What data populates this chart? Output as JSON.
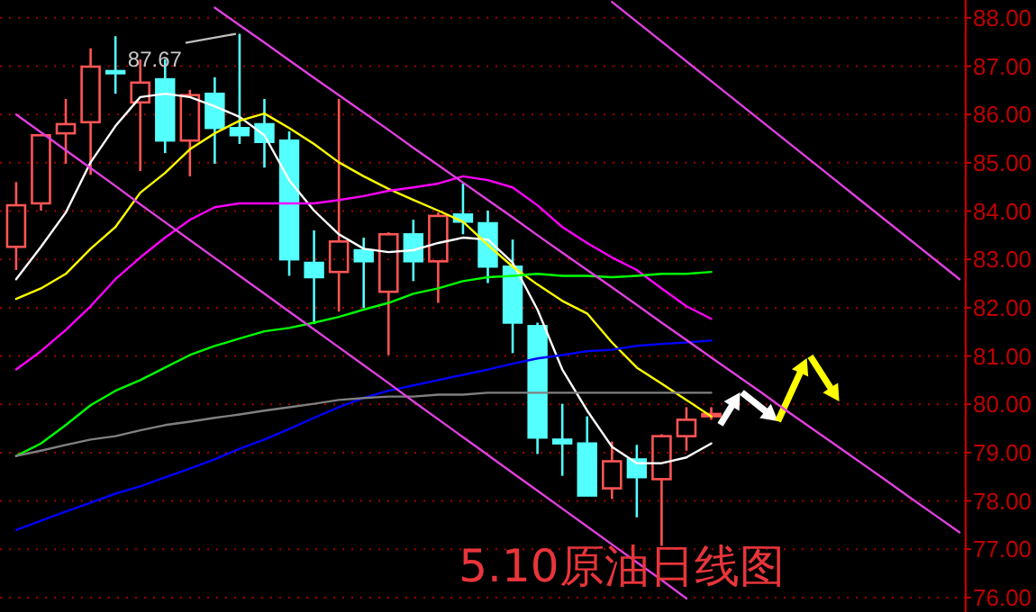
{
  "chart_data": {
    "type": "candlestick",
    "title": "5.10原油日线图",
    "categories": [
      null,
      null,
      null,
      null,
      null,
      null,
      null,
      null,
      null,
      null,
      null,
      null,
      null,
      null,
      null,
      null,
      null,
      null,
      null,
      null,
      null,
      null,
      null,
      null,
      null,
      null,
      null,
      null,
      null,
      null,
      null,
      null,
      null,
      null,
      null,
      null,
      null,
      null,
      null
    ],
    "ohlc": [
      [
        83.26,
        84.6,
        82.78,
        84.12
      ],
      [
        84.16,
        85.57,
        84.01,
        85.57
      ],
      [
        85.61,
        86.32,
        84.98,
        85.8
      ],
      [
        85.84,
        87.37,
        84.75,
        86.99
      ],
      [
        86.9,
        87.62,
        86.43,
        86.86
      ],
      [
        86.25,
        87.14,
        84.83,
        86.66
      ],
      [
        86.73,
        87.14,
        85.2,
        85.46
      ],
      [
        85.46,
        86.51,
        84.72,
        86.4
      ],
      [
        86.43,
        86.77,
        84.98,
        85.72
      ],
      [
        85.72,
        87.67,
        85.39,
        85.57
      ],
      [
        85.8,
        86.32,
        84.9,
        85.43
      ],
      [
        85.46,
        85.65,
        82.66,
        83.0
      ],
      [
        82.93,
        83.6,
        81.66,
        82.63
      ],
      [
        82.74,
        86.32,
        81.92,
        83.37
      ],
      [
        83.19,
        83.45,
        81.99,
        82.96
      ],
      [
        82.33,
        83.56,
        81.02,
        83.52
      ],
      [
        83.52,
        83.82,
        82.55,
        82.96
      ],
      [
        82.96,
        83.97,
        82.1,
        83.9
      ],
      [
        83.93,
        84.57,
        83.52,
        83.78
      ],
      [
        83.75,
        84.01,
        82.51,
        82.85
      ],
      [
        82.85,
        83.41,
        81.06,
        81.69
      ],
      [
        81.62,
        81.69,
        78.97,
        79.31
      ],
      [
        79.27,
        80.01,
        78.52,
        79.19
      ],
      [
        79.19,
        79.75,
        78.11,
        78.11
      ],
      [
        78.26,
        79.23,
        78.04,
        78.82
      ],
      [
        78.86,
        79.16,
        77.66,
        78.49
      ],
      [
        78.45,
        79.38,
        77.07,
        79.34
      ],
      [
        79.34,
        79.94,
        79.04,
        79.68
      ],
      [
        79.78,
        79.94,
        79.68,
        79.8
      ],
      null,
      null,
      null,
      null,
      null,
      null,
      null,
      null,
      null,
      null
    ],
    "colors": [
      "#ff5555",
      "#ff5555",
      "#ff5555",
      "#ff5555",
      "#54ffff",
      "#ff5555",
      "#54ffff",
      "#ff5555",
      "#54ffff",
      "#54ffff",
      "#54ffff",
      "#54ffff",
      "#54ffff",
      "#ff5555",
      "#54ffff",
      "#ff5555",
      "#54ffff",
      "#ff5555",
      "#54ffff",
      "#54ffff",
      "#54ffff",
      "#54ffff",
      "#54ffff",
      "#54ffff",
      "#ff5555",
      "#54ffff",
      "#ff5555",
      "#ff5555",
      "#ff5555",
      null,
      null,
      null,
      null,
      null,
      null,
      null,
      null,
      null,
      null
    ],
    "series": [
      {
        "type": "line",
        "color": "#ffffff",
        "values": [
          82.59,
          83.26,
          83.97,
          85.01,
          85.76,
          86.36,
          86.43,
          86.36,
          86.17,
          85.95,
          85.57,
          84.64,
          84.01,
          83.52,
          83.22,
          83.15,
          83.19,
          83.34,
          83.45,
          83.41,
          82.93,
          81.96,
          80.72,
          79.87,
          79.12,
          78.78,
          78.78,
          78.9,
          79.19,
          null,
          null,
          null,
          null,
          null,
          null,
          null,
          null,
          null,
          null
        ]
      },
      {
        "type": "line",
        "color": "#ffff00",
        "values": [
          82.18,
          82.4,
          82.7,
          83.22,
          83.67,
          84.38,
          84.79,
          85.28,
          85.61,
          85.87,
          86.02,
          85.72,
          85.39,
          85.01,
          84.72,
          84.46,
          84.23,
          84.01,
          83.78,
          83.3,
          82.85,
          82.48,
          82.14,
          81.88,
          81.28,
          80.76,
          80.43,
          80.09,
          79.75,
          null,
          null,
          null,
          null,
          null,
          null,
          null,
          null,
          null,
          null
        ]
      },
      {
        "type": "line",
        "color": "#ff00ff",
        "values": [
          80.72,
          81.1,
          81.54,
          82.03,
          82.59,
          83.04,
          83.45,
          83.82,
          84.08,
          84.16,
          84.16,
          84.16,
          84.16,
          84.23,
          84.31,
          84.42,
          84.49,
          84.57,
          84.72,
          84.64,
          84.49,
          84.12,
          83.67,
          83.34,
          83.04,
          82.78,
          82.4,
          82.03,
          81.77,
          null,
          null,
          null,
          null,
          null,
          null,
          null,
          null,
          null,
          null
        ]
      },
      {
        "type": "line",
        "color": "#00ff00",
        "values": [
          78.93,
          79.19,
          79.57,
          79.98,
          80.28,
          80.5,
          80.76,
          81.02,
          81.21,
          81.36,
          81.51,
          81.58,
          81.69,
          81.81,
          81.96,
          82.1,
          82.29,
          82.4,
          82.55,
          82.63,
          82.66,
          82.7,
          82.66,
          82.66,
          82.63,
          82.66,
          82.7,
          82.7,
          82.74,
          null,
          null,
          null,
          null,
          null,
          null,
          null,
          null,
          null,
          null
        ]
      },
      {
        "type": "line",
        "color": "#0000ff",
        "values": [
          77.4,
          77.59,
          77.78,
          77.96,
          78.15,
          78.3,
          78.49,
          78.67,
          78.86,
          79.08,
          79.27,
          79.49,
          79.72,
          79.94,
          80.13,
          80.28,
          80.39,
          80.5,
          80.61,
          80.72,
          80.84,
          80.95,
          81.02,
          81.1,
          81.13,
          81.21,
          81.25,
          81.28,
          81.32,
          null,
          null,
          null,
          null,
          null,
          null,
          null,
          null,
          null,
          null
        ]
      },
      {
        "type": "line",
        "color": "#808080",
        "values": [
          78.93,
          79.04,
          79.16,
          79.27,
          79.34,
          79.46,
          79.57,
          79.64,
          79.72,
          79.79,
          79.87,
          79.94,
          80.01,
          80.09,
          80.13,
          80.16,
          80.16,
          80.2,
          80.2,
          80.24,
          80.24,
          80.24,
          80.24,
          80.24,
          80.24,
          80.24,
          80.24,
          80.24,
          80.24,
          null,
          null,
          null,
          null,
          null,
          null,
          null,
          null,
          null,
          null
        ]
      },
      {
        "type": "line",
        "color": "#e040e0",
        "values": [
          null,
          null,
          null,
          null,
          null,
          null,
          null,
          null,
          null,
          null,
          null,
          null,
          null,
          null,
          null,
          null,
          null,
          null,
          null,
          null,
          null,
          null,
          null,
          null,
          88.33,
          87.92,
          87.51,
          87.1,
          86.69,
          86.28,
          85.87,
          85.46,
          85.05,
          84.64,
          84.23,
          83.82,
          83.41,
          83.0,
          82.59
        ]
      },
      {
        "type": "line",
        "color": "#e040e0",
        "values": [
          null,
          null,
          null,
          null,
          null,
          null,
          null,
          null,
          88.21,
          87.85,
          87.49,
          87.12,
          86.76,
          86.4,
          86.04,
          85.68,
          85.31,
          84.95,
          84.59,
          84.23,
          83.87,
          83.5,
          83.14,
          82.78,
          82.42,
          82.06,
          81.69,
          81.33,
          80.97,
          80.61,
          80.25,
          79.88,
          79.52,
          79.16,
          78.8,
          78.44,
          78.07,
          77.71,
          77.35
        ]
      },
      {
        "type": "line",
        "color": "#e040e0",
        "values": [
          86.0,
          85.63,
          85.26,
          84.89,
          84.52,
          84.14,
          83.77,
          83.4,
          83.03,
          82.66,
          82.29,
          81.92,
          81.55,
          81.18,
          80.81,
          80.44,
          80.06,
          79.69,
          79.32,
          78.95,
          78.58,
          78.21,
          77.84,
          77.47,
          77.1,
          76.73,
          76.36,
          75.98,
          null,
          null,
          null,
          null,
          null,
          null,
          null,
          null,
          null,
          null,
          null
        ]
      }
    ],
    "ylim": [
      75.7,
      88.37
    ],
    "yticks": [
      {
        "value": 76,
        "label": "76.00"
      },
      {
        "value": 77,
        "label": "77.00"
      },
      {
        "value": 78,
        "label": "78.00"
      },
      {
        "value": 79,
        "label": "79.00"
      },
      {
        "value": 80,
        "label": "80.00"
      },
      {
        "value": 81,
        "label": "81.00"
      },
      {
        "value": 82,
        "label": "82.00"
      },
      {
        "value": 83,
        "label": "83.00"
      },
      {
        "value": 84,
        "label": "84.00"
      },
      {
        "value": 85,
        "label": "85.00"
      },
      {
        "value": 86,
        "label": "86.00"
      },
      {
        "value": 87,
        "label": "87.00"
      },
      {
        "value": 88,
        "label": "88.00"
      }
    ],
    "grid": "y",
    "tick_labels": "y",
    "annotations": [
      "87.67"
    ]
  }
}
